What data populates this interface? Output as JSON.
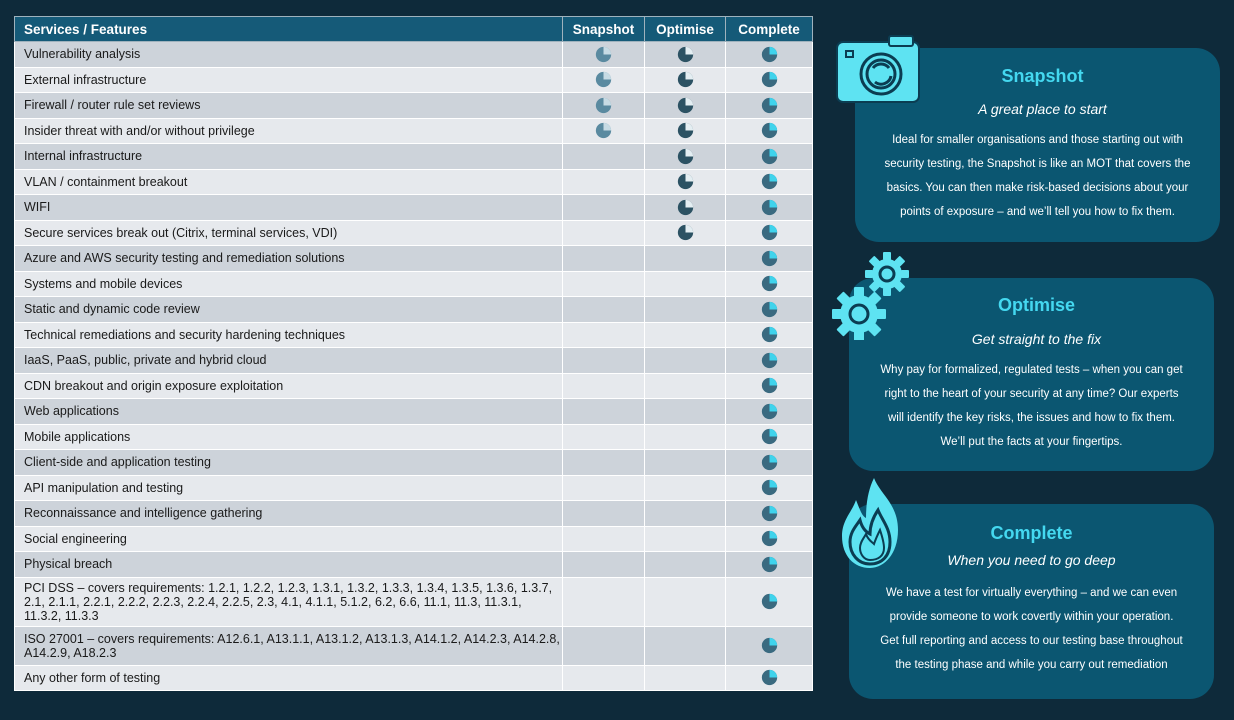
{
  "table": {
    "headers": {
      "feature": "Services / Features",
      "snapshot": "Snapshot",
      "optimise": "Optimise",
      "complete": "Complete"
    },
    "rows": [
      {
        "label": "Vulnerability analysis",
        "snapshot": true,
        "optimise": true,
        "complete": true
      },
      {
        "label": "External infrastructure",
        "snapshot": true,
        "optimise": true,
        "complete": true
      },
      {
        "label": "Firewall  / router rule set reviews",
        "snapshot": true,
        "optimise": true,
        "complete": true
      },
      {
        "label": "Insider threat with and/or without privilege",
        "snapshot": true,
        "optimise": true,
        "complete": true
      },
      {
        "label": "Internal  infrastructure",
        "snapshot": false,
        "optimise": true,
        "complete": true
      },
      {
        "label": "VLAN / containment breakout",
        "snapshot": false,
        "optimise": true,
        "complete": true
      },
      {
        "label": "WIFI",
        "snapshot": false,
        "optimise": true,
        "complete": true
      },
      {
        "label": "Secure services break out (Citrix, terminal services, VDI)",
        "snapshot": false,
        "optimise": true,
        "complete": true
      },
      {
        "label": "Azure and AWS security testing and remediation  solutions",
        "snapshot": false,
        "optimise": false,
        "complete": true
      },
      {
        "label": "Systems and mobile devices",
        "snapshot": false,
        "optimise": false,
        "complete": true
      },
      {
        "label": "Static and dynamic code review",
        "snapshot": false,
        "optimise": false,
        "complete": true
      },
      {
        "label": "Technical remediations  and  security hardening  techniques",
        "snapshot": false,
        "optimise": false,
        "complete": true
      },
      {
        "label": "IaaS, PaaS, public, private  and hybrid cloud",
        "snapshot": false,
        "optimise": false,
        "complete": true
      },
      {
        "label": "CDN  breakout  and origin  exposure  exploitation",
        "snapshot": false,
        "optimise": false,
        "complete": true
      },
      {
        "label": "Web applications",
        "snapshot": false,
        "optimise": false,
        "complete": true
      },
      {
        "label": "Mobile applications",
        "snapshot": false,
        "optimise": false,
        "complete": true
      },
      {
        "label": "Client-side  and  application testing",
        "snapshot": false,
        "optimise": false,
        "complete": true
      },
      {
        "label": "API manipulation  and testing",
        "snapshot": false,
        "optimise": false,
        "complete": true
      },
      {
        "label": "Reconnaissance  and intelligence gathering",
        "snapshot": false,
        "optimise": false,
        "complete": true
      },
      {
        "label": "Social engineering",
        "snapshot": false,
        "optimise": false,
        "complete": true
      },
      {
        "label": "Physical breach",
        "snapshot": false,
        "optimise": false,
        "complete": true
      },
      {
        "label": "PCI DSS – covers  requirements:  1.2.1, 1.2.2, 1.2.3, 1.3.1, 1.3.2, 1.3.3, 1.3.4, 1.3.5, 1.3.6, 1.3.7, 2.1, 2.1.1, 2.2.1, 2.2.2, 2.2.3, 2.2.4, 2.2.5, 2.3, 4.1, 4.1.1, 5.1.2, 6.2, 6.6, 11.1, 11.3, 11.3.1, 11.3.2, 11.3.3",
        "snapshot": false,
        "optimise": false,
        "complete": true,
        "tall": "tall3"
      },
      {
        "label": "ISO 27001 – covers  requirements:  A12.6.1, A13.1.1, A13.1.2, A13.1.3, A14.1.2, A14.2.3, A14.2.8, A14.2.9, A18.2.3",
        "snapshot": false,
        "optimise": false,
        "complete": true,
        "tall": "tall2"
      },
      {
        "label": "Any other form  of testing",
        "snapshot": false,
        "optimise": false,
        "complete": true
      }
    ]
  },
  "icons": {
    "snapshot": "pie-quarter-icon",
    "optimise": "pie-three-quarter-icon",
    "complete": "pie-full-icon"
  },
  "colors": {
    "header": "#155a78",
    "card": "#0b5671",
    "accent": "#44d8f0",
    "background": "#0e2a3a"
  },
  "cards": {
    "snapshot": {
      "title": "Snapshot",
      "subtitle": "A great place to start",
      "lines": [
        "Ideal for smaller organisations and those starting out with",
        "security testing, the Snapshot is like an MOT that covers the",
        "basics. You can then make risk-based decisions about your",
        "points of exposure – and we’ll tell you how to fix them."
      ],
      "icon": "camera-icon"
    },
    "optimise": {
      "title": "Optimise",
      "subtitle": "Get straight to the fix",
      "lines": [
        "Why pay for formalized, regulated tests – when you can get",
        "right to the heart of your security at any time? Our experts",
        "will identify the key risks, the issues and how to fix them.",
        "We’ll put the facts at your fingertips."
      ],
      "icon": "gears-icon"
    },
    "complete": {
      "title": "Complete",
      "subtitle": "When you need to go deep",
      "lines": [
        "We have a test for virtually everything – and we can even",
        "provide someone to work covertly within your operation.",
        "Get full reporting and access to our testing base throughout",
        "the testing phase and while you carry out remediation"
      ],
      "icon": "flame-icon"
    }
  }
}
